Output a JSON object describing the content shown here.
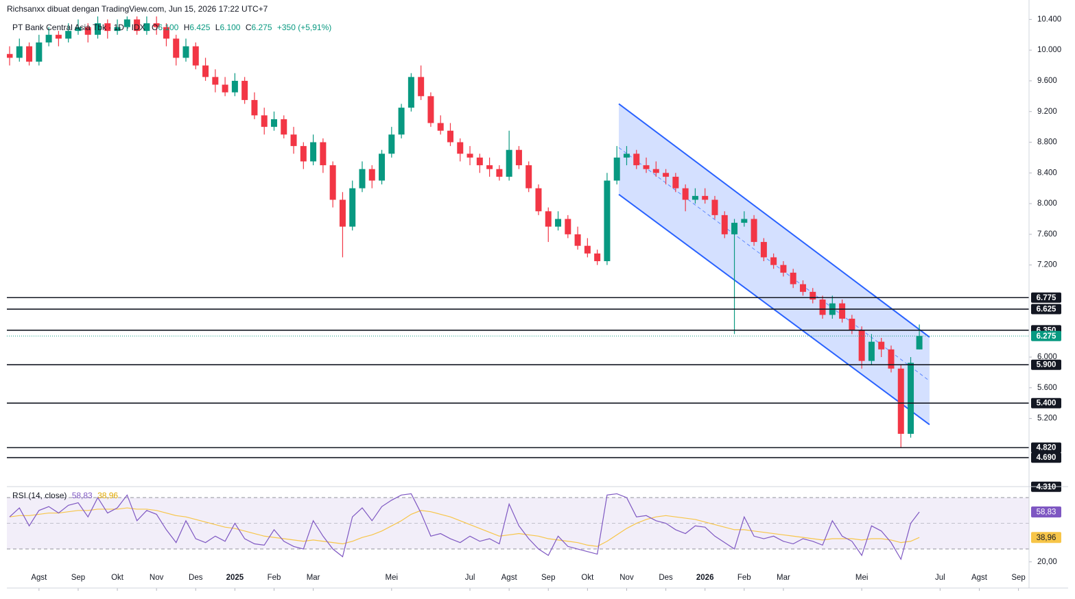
{
  "header": "Richsanxx dibuat dengan TradingView.com, Jun 15, 2026 17:22 UTC+7",
  "chart_data": {
    "type": "candlestick",
    "title": "PT Bank Central Asia Tbk · 1D · IDX",
    "ohlc": [
      "O",
      "6.100",
      "H",
      "6.425",
      "L",
      "6.100",
      "C",
      "6.275"
    ],
    "change": "+350 (+5,91%)",
    "up_color": "#089981",
    "down_color": "#f23645",
    "xlim": [
      6.18,
      32.27
    ],
    "xticks": [
      {
        "value": 7,
        "label": "Agst"
      },
      {
        "value": 8,
        "label": "Sep"
      },
      {
        "value": 9,
        "label": "Okt"
      },
      {
        "value": 10,
        "label": "Nov"
      },
      {
        "value": 11,
        "label": "Des"
      },
      {
        "value": 12,
        "label": "2025"
      },
      {
        "value": 13,
        "label": "Feb"
      },
      {
        "value": 14,
        "label": "Mar"
      },
      {
        "value": 16,
        "label": "Mei"
      },
      {
        "value": 18,
        "label": "Jul"
      },
      {
        "value": 19,
        "label": "Agst"
      },
      {
        "value": 20,
        "label": "Sep"
      },
      {
        "value": 21,
        "label": "Okt"
      },
      {
        "value": 22,
        "label": "Nov"
      },
      {
        "value": 23,
        "label": "Des"
      },
      {
        "value": 24,
        "label": "2026"
      },
      {
        "value": 25,
        "label": "Feb"
      },
      {
        "value": 26,
        "label": "Mar"
      },
      {
        "value": 28,
        "label": "Mei"
      },
      {
        "value": 30,
        "label": "Jul"
      },
      {
        "value": 31,
        "label": "Agst"
      },
      {
        "value": 32,
        "label": "Sep"
      }
    ],
    "ylim": [
      4330,
      10430
    ],
    "yticks": [
      {
        "value": 10400,
        "label": "10.400"
      },
      {
        "value": 10000,
        "label": "10.000"
      },
      {
        "value": 9600,
        "label": "9.600"
      },
      {
        "value": 9200,
        "label": "9.200"
      },
      {
        "value": 8800,
        "label": "8.800"
      },
      {
        "value": 8400,
        "label": "8.400"
      },
      {
        "value": 8000,
        "label": "8.000"
      },
      {
        "value": 7600,
        "label": "7.600"
      },
      {
        "value": 7200,
        "label": "7.200"
      },
      {
        "value": 6000,
        "label": "6.000"
      },
      {
        "value": 5600,
        "label": "5.600"
      },
      {
        "value": 5200,
        "label": "5.200"
      }
    ],
    "levels": [
      {
        "value": 6775,
        "label": "6.775"
      },
      {
        "value": 6625,
        "label": "6.625"
      },
      {
        "value": 6350,
        "label": "6.350"
      },
      {
        "value": 5900,
        "label": "5.900"
      },
      {
        "value": 5400,
        "label": "5.400"
      },
      {
        "value": 4820,
        "label": "4.820"
      },
      {
        "value": 4690,
        "label": "4.690"
      },
      {
        "value": 4310,
        "label": "4.310"
      }
    ],
    "last_price": {
      "value": 6275,
      "label": "6.275"
    },
    "channel": {
      "color": "#2962ff",
      "x": [
        21.8,
        29.73
      ],
      "upper": [
        9300,
        6260
      ],
      "median": [
        8730,
        5690
      ],
      "lower": [
        8120,
        5120
      ]
    },
    "candles": [
      [
        6.25,
        9950,
        10050,
        9800,
        9900
      ],
      [
        6.5,
        9900,
        10150,
        9850,
        10050
      ],
      [
        6.75,
        10050,
        10100,
        9800,
        9850
      ],
      [
        7.0,
        9850,
        10200,
        9800,
        10100
      ],
      [
        7.25,
        10100,
        10300,
        10050,
        10200
      ],
      [
        7.5,
        10200,
        10250,
        10050,
        10150
      ],
      [
        7.75,
        10150,
        10350,
        10100,
        10250
      ],
      [
        8.0,
        10250,
        10400,
        10200,
        10300
      ],
      [
        8.25,
        10300,
        10350,
        10100,
        10200
      ],
      [
        8.5,
        10200,
        10450,
        10150,
        10350
      ],
      [
        8.75,
        10350,
        10400,
        10150,
        10250
      ],
      [
        9.0,
        10250,
        10400,
        10200,
        10300
      ],
      [
        9.25,
        10300,
        10500,
        10250,
        10400
      ],
      [
        9.5,
        10400,
        10450,
        10200,
        10250
      ],
      [
        9.75,
        10250,
        10450,
        10200,
        10350
      ],
      [
        10.0,
        10350,
        10450,
        10200,
        10300
      ],
      [
        10.25,
        10300,
        10350,
        10050,
        10150
      ],
      [
        10.5,
        10150,
        10200,
        9800,
        9900
      ],
      [
        10.75,
        9900,
        10150,
        9850,
        10050
      ],
      [
        11.0,
        10050,
        10100,
        9750,
        9800
      ],
      [
        11.25,
        9800,
        9900,
        9600,
        9650
      ],
      [
        11.5,
        9650,
        9750,
        9450,
        9550
      ],
      [
        11.75,
        9550,
        9650,
        9400,
        9450
      ],
      [
        12.0,
        9450,
        9700,
        9400,
        9600
      ],
      [
        12.25,
        9600,
        9650,
        9300,
        9350
      ],
      [
        12.5,
        9350,
        9450,
        9100,
        9150
      ],
      [
        12.75,
        9150,
        9250,
        8900,
        9000
      ],
      [
        13.0,
        9000,
        9200,
        8950,
        9100
      ],
      [
        13.25,
        9100,
        9150,
        8850,
        8900
      ],
      [
        13.5,
        8900,
        9000,
        8650,
        8750
      ],
      [
        13.75,
        8750,
        8800,
        8450,
        8550
      ],
      [
        14.0,
        8550,
        8900,
        8500,
        8800
      ],
      [
        14.25,
        8800,
        8850,
        8400,
        8500
      ],
      [
        14.5,
        8500,
        8550,
        7950,
        8050
      ],
      [
        14.75,
        8050,
        8150,
        7300,
        7700
      ],
      [
        15.0,
        7700,
        8300,
        7650,
        8200
      ],
      [
        15.25,
        8200,
        8550,
        8150,
        8450
      ],
      [
        15.5,
        8450,
        8500,
        8200,
        8300
      ],
      [
        15.75,
        8300,
        8700,
        8250,
        8650
      ],
      [
        16.0,
        8650,
        9000,
        8600,
        8900
      ],
      [
        16.25,
        8900,
        9300,
        8850,
        9250
      ],
      [
        16.5,
        9250,
        9700,
        9200,
        9650
      ],
      [
        16.75,
        9650,
        9800,
        9350,
        9400
      ],
      [
        17.0,
        9400,
        9450,
        9000,
        9050
      ],
      [
        17.25,
        9050,
        9150,
        8900,
        8950
      ],
      [
        17.5,
        8950,
        9050,
        8750,
        8800
      ],
      [
        17.75,
        8800,
        8850,
        8550,
        8650
      ],
      [
        18.0,
        8650,
        8750,
        8500,
        8600
      ],
      [
        18.25,
        8600,
        8650,
        8400,
        8500
      ],
      [
        18.5,
        8500,
        8600,
        8350,
        8450
      ],
      [
        18.75,
        8450,
        8500,
        8300,
        8350
      ],
      [
        19.0,
        8350,
        8950,
        8300,
        8700
      ],
      [
        19.25,
        8700,
        8750,
        8450,
        8500
      ],
      [
        19.5,
        8500,
        8550,
        8150,
        8200
      ],
      [
        19.75,
        8200,
        8250,
        7850,
        7900
      ],
      [
        20.0,
        7900,
        7950,
        7500,
        7700
      ],
      [
        20.25,
        7700,
        7900,
        7650,
        7800
      ],
      [
        20.5,
        7800,
        7850,
        7550,
        7600
      ],
      [
        20.75,
        7600,
        7700,
        7400,
        7450
      ],
      [
        21.0,
        7450,
        7550,
        7300,
        7350
      ],
      [
        21.25,
        7350,
        7400,
        7200,
        7250
      ],
      [
        21.5,
        7250,
        8400,
        7200,
        8300
      ],
      [
        21.75,
        8300,
        8750,
        8250,
        8600
      ],
      [
        22.0,
        8600,
        8750,
        8500,
        8650
      ],
      [
        22.25,
        8650,
        8700,
        8450,
        8500
      ],
      [
        22.5,
        8500,
        8600,
        8400,
        8450
      ],
      [
        22.75,
        8450,
        8550,
        8350,
        8400
      ],
      [
        23.0,
        8400,
        8450,
        8250,
        8350
      ],
      [
        23.25,
        8350,
        8400,
        8150,
        8200
      ],
      [
        23.5,
        8200,
        8250,
        7900,
        8050
      ],
      [
        23.75,
        8050,
        8200,
        8000,
        8100
      ],
      [
        24.0,
        8100,
        8200,
        8000,
        8050
      ],
      [
        24.25,
        8050,
        8100,
        7800,
        7850
      ],
      [
        24.5,
        7850,
        7900,
        7550,
        7600
      ],
      [
        24.75,
        7600,
        7800,
        6300,
        7750
      ],
      [
        25.0,
        7750,
        7900,
        7700,
        7800
      ],
      [
        25.25,
        7800,
        7850,
        7450,
        7500
      ],
      [
        25.5,
        7500,
        7550,
        7250,
        7300
      ],
      [
        25.75,
        7300,
        7350,
        7150,
        7200
      ],
      [
        26.0,
        7200,
        7250,
        7050,
        7100
      ],
      [
        26.25,
        7100,
        7150,
        6900,
        6950
      ],
      [
        26.5,
        6950,
        7000,
        6800,
        6850
      ],
      [
        26.75,
        6850,
        6900,
        6700,
        6750
      ],
      [
        27.0,
        6750,
        6800,
        6500,
        6550
      ],
      [
        27.25,
        6550,
        6800,
        6500,
        6700
      ],
      [
        27.5,
        6700,
        6750,
        6450,
        6500
      ],
      [
        27.75,
        6500,
        6550,
        6300,
        6350
      ],
      [
        28.0,
        6350,
        6400,
        5850,
        5950
      ],
      [
        28.25,
        5950,
        6300,
        5900,
        6200
      ],
      [
        28.5,
        6200,
        6250,
        6000,
        6100
      ],
      [
        28.75,
        6100,
        6150,
        5800,
        5850
      ],
      [
        29.0,
        5850,
        5900,
        4820,
        5000
      ],
      [
        29.25,
        5000,
        6000,
        4950,
        5925
      ],
      [
        29.47,
        6100,
        6425,
        6100,
        6275
      ]
    ],
    "rsi": {
      "title": "RSI (14, close)",
      "color": "#7e57c2",
      "ma_color": "#f7c548",
      "ylim": [
        1.2,
        77.5
      ],
      "bands": [
        70,
        50,
        30
      ],
      "yticks": [
        {
          "value": 20,
          "label": "20,00"
        }
      ],
      "values": [
        55,
        62,
        48,
        60,
        63,
        58,
        64,
        66,
        55,
        70,
        58,
        62,
        72,
        52,
        60,
        57,
        45,
        35,
        52,
        38,
        35,
        40,
        36,
        50,
        38,
        34,
        33,
        45,
        36,
        32,
        30,
        52,
        40,
        30,
        24,
        55,
        62,
        52,
        63,
        68,
        72,
        73,
        58,
        40,
        42,
        38,
        35,
        40,
        36,
        38,
        34,
        65,
        48,
        38,
        30,
        25,
        40,
        32,
        30,
        28,
        26,
        72,
        73,
        70,
        55,
        56,
        52,
        50,
        45,
        42,
        48,
        47,
        40,
        35,
        30,
        55,
        40,
        38,
        40,
        36,
        34,
        38,
        36,
        33,
        52,
        40,
        36,
        25,
        48,
        44,
        35,
        22,
        50,
        58.83
      ],
      "value_label": "58,83",
      "ma": [
        55,
        56,
        56,
        57,
        58,
        58,
        59,
        60,
        60,
        61,
        61,
        61,
        62,
        61,
        61,
        60,
        58,
        56,
        55,
        53,
        51,
        49,
        47,
        46,
        44,
        42,
        40,
        39,
        38,
        37,
        36,
        37,
        36,
        35,
        34,
        36,
        39,
        41,
        44,
        48,
        52,
        57,
        60,
        59,
        57,
        55,
        52,
        49,
        46,
        43,
        40,
        41,
        42,
        41,
        40,
        38,
        37,
        36,
        35,
        33,
        32,
        36,
        41,
        46,
        50,
        53,
        55,
        56,
        55,
        54,
        53,
        51,
        49,
        47,
        45,
        45,
        44,
        43,
        42,
        41,
        40,
        39,
        38,
        37,
        38,
        38,
        38,
        37,
        38,
        38,
        37,
        35,
        36,
        38.96
      ],
      "ma_label": "38,96"
    }
  }
}
